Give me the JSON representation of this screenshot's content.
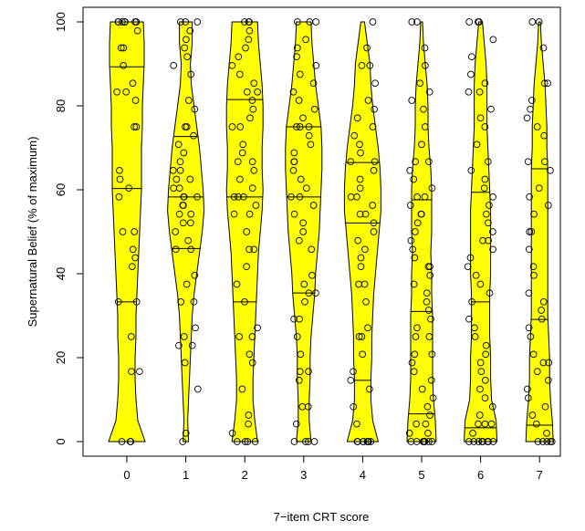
{
  "chart_data": {
    "type": "violin",
    "title": "",
    "xlabel": "7−item CRT score",
    "ylabel": "Supernatural Belief (% of maximum)",
    "categories": [
      "0",
      "1",
      "2",
      "3",
      "4",
      "5",
      "6",
      "7"
    ],
    "ylim": [
      0,
      100
    ],
    "yticks": [
      "0",
      "20",
      "40",
      "60",
      "80",
      "100"
    ],
    "grid": false,
    "fill_color": "#ffff00",
    "outline_color": "#000000",
    "groups": [
      {
        "category": "0",
        "quartiles": [
          33.3,
          60.3,
          89.3
        ],
        "density": [
          [
            0,
            1.0
          ],
          [
            5,
            0.6
          ],
          [
            10,
            0.5
          ],
          [
            15,
            0.45
          ],
          [
            20,
            0.45
          ],
          [
            25,
            0.5
          ],
          [
            30,
            0.5
          ],
          [
            35,
            0.55
          ],
          [
            40,
            0.6
          ],
          [
            45,
            0.65
          ],
          [
            50,
            0.7
          ],
          [
            55,
            0.75
          ],
          [
            60,
            0.8
          ],
          [
            65,
            0.8
          ],
          [
            70,
            0.8
          ],
          [
            75,
            0.85
          ],
          [
            80,
            0.85
          ],
          [
            85,
            0.9
          ],
          [
            90,
            0.95
          ],
          [
            95,
            0.95
          ],
          [
            100,
            0.9
          ]
        ],
        "points": [
          0,
          0,
          0,
          16.7,
          16.7,
          25,
          33.3,
          33.3,
          41.7,
          43.8,
          45.8,
          50,
          50,
          58.3,
          60.4,
          62.5,
          64.6,
          75,
          75,
          81.3,
          83.3,
          83.3,
          85.4,
          89.6,
          93.8,
          93.8,
          97.9,
          100,
          100,
          100,
          100,
          100,
          100,
          100
        ]
      },
      {
        "category": "1",
        "quartiles": [
          46,
          58.3,
          72.7
        ],
        "density": [
          [
            0,
            0.15
          ],
          [
            5,
            0.1
          ],
          [
            10,
            0.15
          ],
          [
            15,
            0.2
          ],
          [
            20,
            0.25
          ],
          [
            25,
            0.3
          ],
          [
            30,
            0.35
          ],
          [
            35,
            0.45
          ],
          [
            40,
            0.6
          ],
          [
            45,
            0.75
          ],
          [
            50,
            0.9
          ],
          [
            55,
            1.0
          ],
          [
            60,
            0.95
          ],
          [
            65,
            0.85
          ],
          [
            70,
            0.75
          ],
          [
            75,
            0.6
          ],
          [
            80,
            0.45
          ],
          [
            85,
            0.3
          ],
          [
            90,
            0.25
          ],
          [
            95,
            0.35
          ],
          [
            100,
            0.35
          ]
        ],
        "points": [
          0,
          2,
          12.5,
          18.8,
          22.9,
          22.9,
          25,
          27.1,
          33.3,
          33.3,
          37.5,
          39.6,
          45.8,
          45.8,
          47.9,
          50,
          52.1,
          52.1,
          54.2,
          54.2,
          56.3,
          56.3,
          58.3,
          58.3,
          58.3,
          60.4,
          60.4,
          62.5,
          62.5,
          64.6,
          64.6,
          66.7,
          68.8,
          70.8,
          72.9,
          75,
          75,
          79.2,
          81.3,
          87.5,
          89.6,
          91.7,
          93.8,
          95.8,
          97.9,
          100,
          100,
          100
        ]
      },
      {
        "category": "2",
        "quartiles": [
          33.3,
          58.3,
          81.5
        ],
        "density": [
          [
            0,
            0.7
          ],
          [
            5,
            0.55
          ],
          [
            10,
            0.45
          ],
          [
            15,
            0.45
          ],
          [
            20,
            0.5
          ],
          [
            25,
            0.55
          ],
          [
            30,
            0.6
          ],
          [
            35,
            0.65
          ],
          [
            40,
            0.7
          ],
          [
            45,
            0.75
          ],
          [
            50,
            0.85
          ],
          [
            55,
            0.95
          ],
          [
            60,
            1.0
          ],
          [
            65,
            0.95
          ],
          [
            70,
            0.95
          ],
          [
            75,
            1.0
          ],
          [
            80,
            1.0
          ],
          [
            85,
            0.95
          ],
          [
            90,
            0.85
          ],
          [
            95,
            0.75
          ],
          [
            100,
            0.7
          ]
        ],
        "points": [
          0,
          0,
          0,
          0,
          2,
          4.2,
          6.3,
          12.5,
          18.8,
          20.8,
          25,
          25,
          27.1,
          33.3,
          37.5,
          41.7,
          45.8,
          45.8,
          50,
          54.2,
          54.2,
          56.3,
          58.3,
          58.3,
          58.3,
          60.4,
          62.5,
          64.6,
          66.7,
          66.7,
          68.8,
          70.8,
          75,
          75,
          77.1,
          79.2,
          81.3,
          83.3,
          83.3,
          85.4,
          87.5,
          89.6,
          91.7,
          93.8,
          95.8,
          97.9,
          100,
          100,
          100
        ]
      },
      {
        "category": "3",
        "quartiles": [
          35.4,
          58.3,
          75.0
        ],
        "density": [
          [
            0,
            0.4
          ],
          [
            5,
            0.3
          ],
          [
            10,
            0.3
          ],
          [
            15,
            0.35
          ],
          [
            20,
            0.35
          ],
          [
            25,
            0.4
          ],
          [
            30,
            0.5
          ],
          [
            35,
            0.6
          ],
          [
            40,
            0.65
          ],
          [
            45,
            0.75
          ],
          [
            50,
            0.85
          ],
          [
            55,
            0.9
          ],
          [
            60,
            0.95
          ],
          [
            65,
            1.0
          ],
          [
            70,
            1.0
          ],
          [
            75,
            0.95
          ],
          [
            80,
            0.8
          ],
          [
            85,
            0.65
          ],
          [
            90,
            0.55
          ],
          [
            95,
            0.45
          ],
          [
            100,
            0.4
          ]
        ],
        "points": [
          0,
          0,
          0,
          0,
          4.2,
          8.3,
          8.3,
          14.6,
          16.7,
          16.7,
          20.8,
          25,
          29.2,
          29.2,
          33.3,
          35.4,
          35.4,
          37.5,
          39.6,
          45.8,
          47.9,
          50,
          52.1,
          54.2,
          56.3,
          58.3,
          58.3,
          60.4,
          62.5,
          64.6,
          66.7,
          66.7,
          68.8,
          70.8,
          72.9,
          75,
          75,
          75,
          77.1,
          79.2,
          81.3,
          83.3,
          85.4,
          87.5,
          89.6,
          91.7,
          93.8,
          95.8,
          100,
          100,
          100
        ]
      },
      {
        "category": "4",
        "quartiles": [
          14.6,
          52.1,
          66.5
        ],
        "density": [
          [
            0,
            0.85
          ],
          [
            5,
            0.55
          ],
          [
            10,
            0.45
          ],
          [
            15,
            0.45
          ],
          [
            20,
            0.5
          ],
          [
            25,
            0.5
          ],
          [
            30,
            0.55
          ],
          [
            35,
            0.6
          ],
          [
            40,
            0.7
          ],
          [
            45,
            0.8
          ],
          [
            50,
            0.9
          ],
          [
            55,
            1.0
          ],
          [
            60,
            1.0
          ],
          [
            65,
            0.95
          ],
          [
            70,
            0.85
          ],
          [
            75,
            0.7
          ],
          [
            80,
            0.55
          ],
          [
            85,
            0.45
          ],
          [
            90,
            0.4
          ],
          [
            95,
            0.25
          ],
          [
            100,
            0.1
          ]
        ],
        "points": [
          0,
          0,
          0,
          0,
          0,
          0,
          0,
          0,
          4.2,
          8.3,
          12.5,
          14.6,
          16.7,
          20.8,
          25,
          25,
          27.1,
          33.3,
          37.5,
          37.5,
          41.7,
          43.8,
          45.8,
          47.9,
          50,
          52.1,
          54.2,
          54.2,
          56.3,
          58.3,
          58.3,
          60.4,
          62.5,
          64.6,
          66.7,
          66.7,
          68.8,
          70.8,
          72.9,
          75,
          77.1,
          79.2,
          81.3,
          85.4,
          89.6,
          89.6,
          93.8,
          100
        ]
      },
      {
        "category": "5",
        "quartiles": [
          6.6,
          31.0,
          57.6
        ],
        "density": [
          [
            0,
            0.8
          ],
          [
            5,
            0.75
          ],
          [
            10,
            0.65
          ],
          [
            15,
            0.6
          ],
          [
            20,
            0.6
          ],
          [
            25,
            0.6
          ],
          [
            30,
            0.6
          ],
          [
            35,
            0.55
          ],
          [
            40,
            0.55
          ],
          [
            45,
            0.5
          ],
          [
            50,
            0.55
          ],
          [
            55,
            0.55
          ],
          [
            60,
            0.55
          ],
          [
            65,
            0.5
          ],
          [
            70,
            0.4
          ],
          [
            75,
            0.35
          ],
          [
            80,
            0.35
          ],
          [
            85,
            0.3
          ],
          [
            90,
            0.2
          ],
          [
            95,
            0.1
          ],
          [
            100,
            0.05
          ]
        ],
        "points": [
          0,
          0,
          0,
          0,
          0,
          0,
          0,
          2,
          2,
          4.2,
          4.2,
          6.3,
          8.3,
          10.4,
          12.5,
          14.6,
          16.7,
          18.8,
          20.8,
          20.8,
          25,
          25,
          27.1,
          29.2,
          31.3,
          33.3,
          35.4,
          37.5,
          39.6,
          41.7,
          41.7,
          43.8,
          45.8,
          47.9,
          50,
          52.1,
          54.2,
          54.2,
          56.3,
          58.3,
          58.3,
          60.4,
          62.5,
          64.6,
          66.7,
          66.7,
          70.8,
          75,
          79.2,
          81.3,
          83.3,
          85.4,
          89.6,
          93.8,
          100,
          100
        ]
      },
      {
        "category": "6",
        "quartiles": [
          3.3,
          33.3,
          59.4
        ],
        "density": [
          [
            0,
            0.9
          ],
          [
            5,
            0.85
          ],
          [
            10,
            0.6
          ],
          [
            15,
            0.55
          ],
          [
            20,
            0.55
          ],
          [
            25,
            0.5
          ],
          [
            30,
            0.5
          ],
          [
            35,
            0.5
          ],
          [
            40,
            0.55
          ],
          [
            45,
            0.55
          ],
          [
            50,
            0.55
          ],
          [
            55,
            0.55
          ],
          [
            60,
            0.5
          ],
          [
            65,
            0.45
          ],
          [
            70,
            0.4
          ],
          [
            75,
            0.35
          ],
          [
            80,
            0.35
          ],
          [
            85,
            0.35
          ],
          [
            90,
            0.3
          ],
          [
            95,
            0.2
          ],
          [
            100,
            0.1
          ]
        ],
        "points": [
          0,
          0,
          0,
          0,
          0,
          0,
          0,
          0,
          0,
          2,
          4.2,
          4.2,
          4.2,
          6.3,
          8.3,
          10.4,
          12.5,
          14.6,
          16.7,
          18.8,
          20.8,
          22.9,
          25,
          27.1,
          29.2,
          33.3,
          35.4,
          37.5,
          39.6,
          41.7,
          43.8,
          45.8,
          47.9,
          47.9,
          50,
          52.1,
          54.2,
          56.3,
          58.3,
          60.4,
          62.5,
          64.6,
          66.7,
          70.8,
          75,
          77.1,
          79.2,
          83.3,
          83.3,
          85.4,
          87.5,
          91.7,
          95.8,
          100,
          100,
          100
        ]
      },
      {
        "category": "7",
        "quartiles": [
          3.9,
          29.1,
          65.0
        ],
        "density": [
          [
            0,
            0.75
          ],
          [
            5,
            0.7
          ],
          [
            10,
            0.6
          ],
          [
            15,
            0.55
          ],
          [
            20,
            0.55
          ],
          [
            25,
            0.5
          ],
          [
            30,
            0.45
          ],
          [
            35,
            0.45
          ],
          [
            40,
            0.45
          ],
          [
            45,
            0.45
          ],
          [
            50,
            0.45
          ],
          [
            55,
            0.45
          ],
          [
            60,
            0.45
          ],
          [
            65,
            0.45
          ],
          [
            70,
            0.4
          ],
          [
            75,
            0.4
          ],
          [
            80,
            0.35
          ],
          [
            85,
            0.3
          ],
          [
            90,
            0.2
          ],
          [
            95,
            0.1
          ],
          [
            100,
            0.05
          ]
        ],
        "points": [
          0,
          0,
          0,
          0,
          0,
          2,
          4.2,
          6.3,
          8.3,
          10.4,
          12.5,
          14.6,
          16.7,
          18.8,
          18.8,
          20.8,
          25,
          27.1,
          29.2,
          31.3,
          33.3,
          35.4,
          39.6,
          41.7,
          45.8,
          50,
          50,
          54.2,
          56.3,
          58.3,
          60.4,
          64.6,
          66.7,
          66.7,
          72.9,
          75,
          77.1,
          79.2,
          81.3,
          85.4,
          85.4,
          93.8,
          100,
          100
        ]
      }
    ]
  }
}
